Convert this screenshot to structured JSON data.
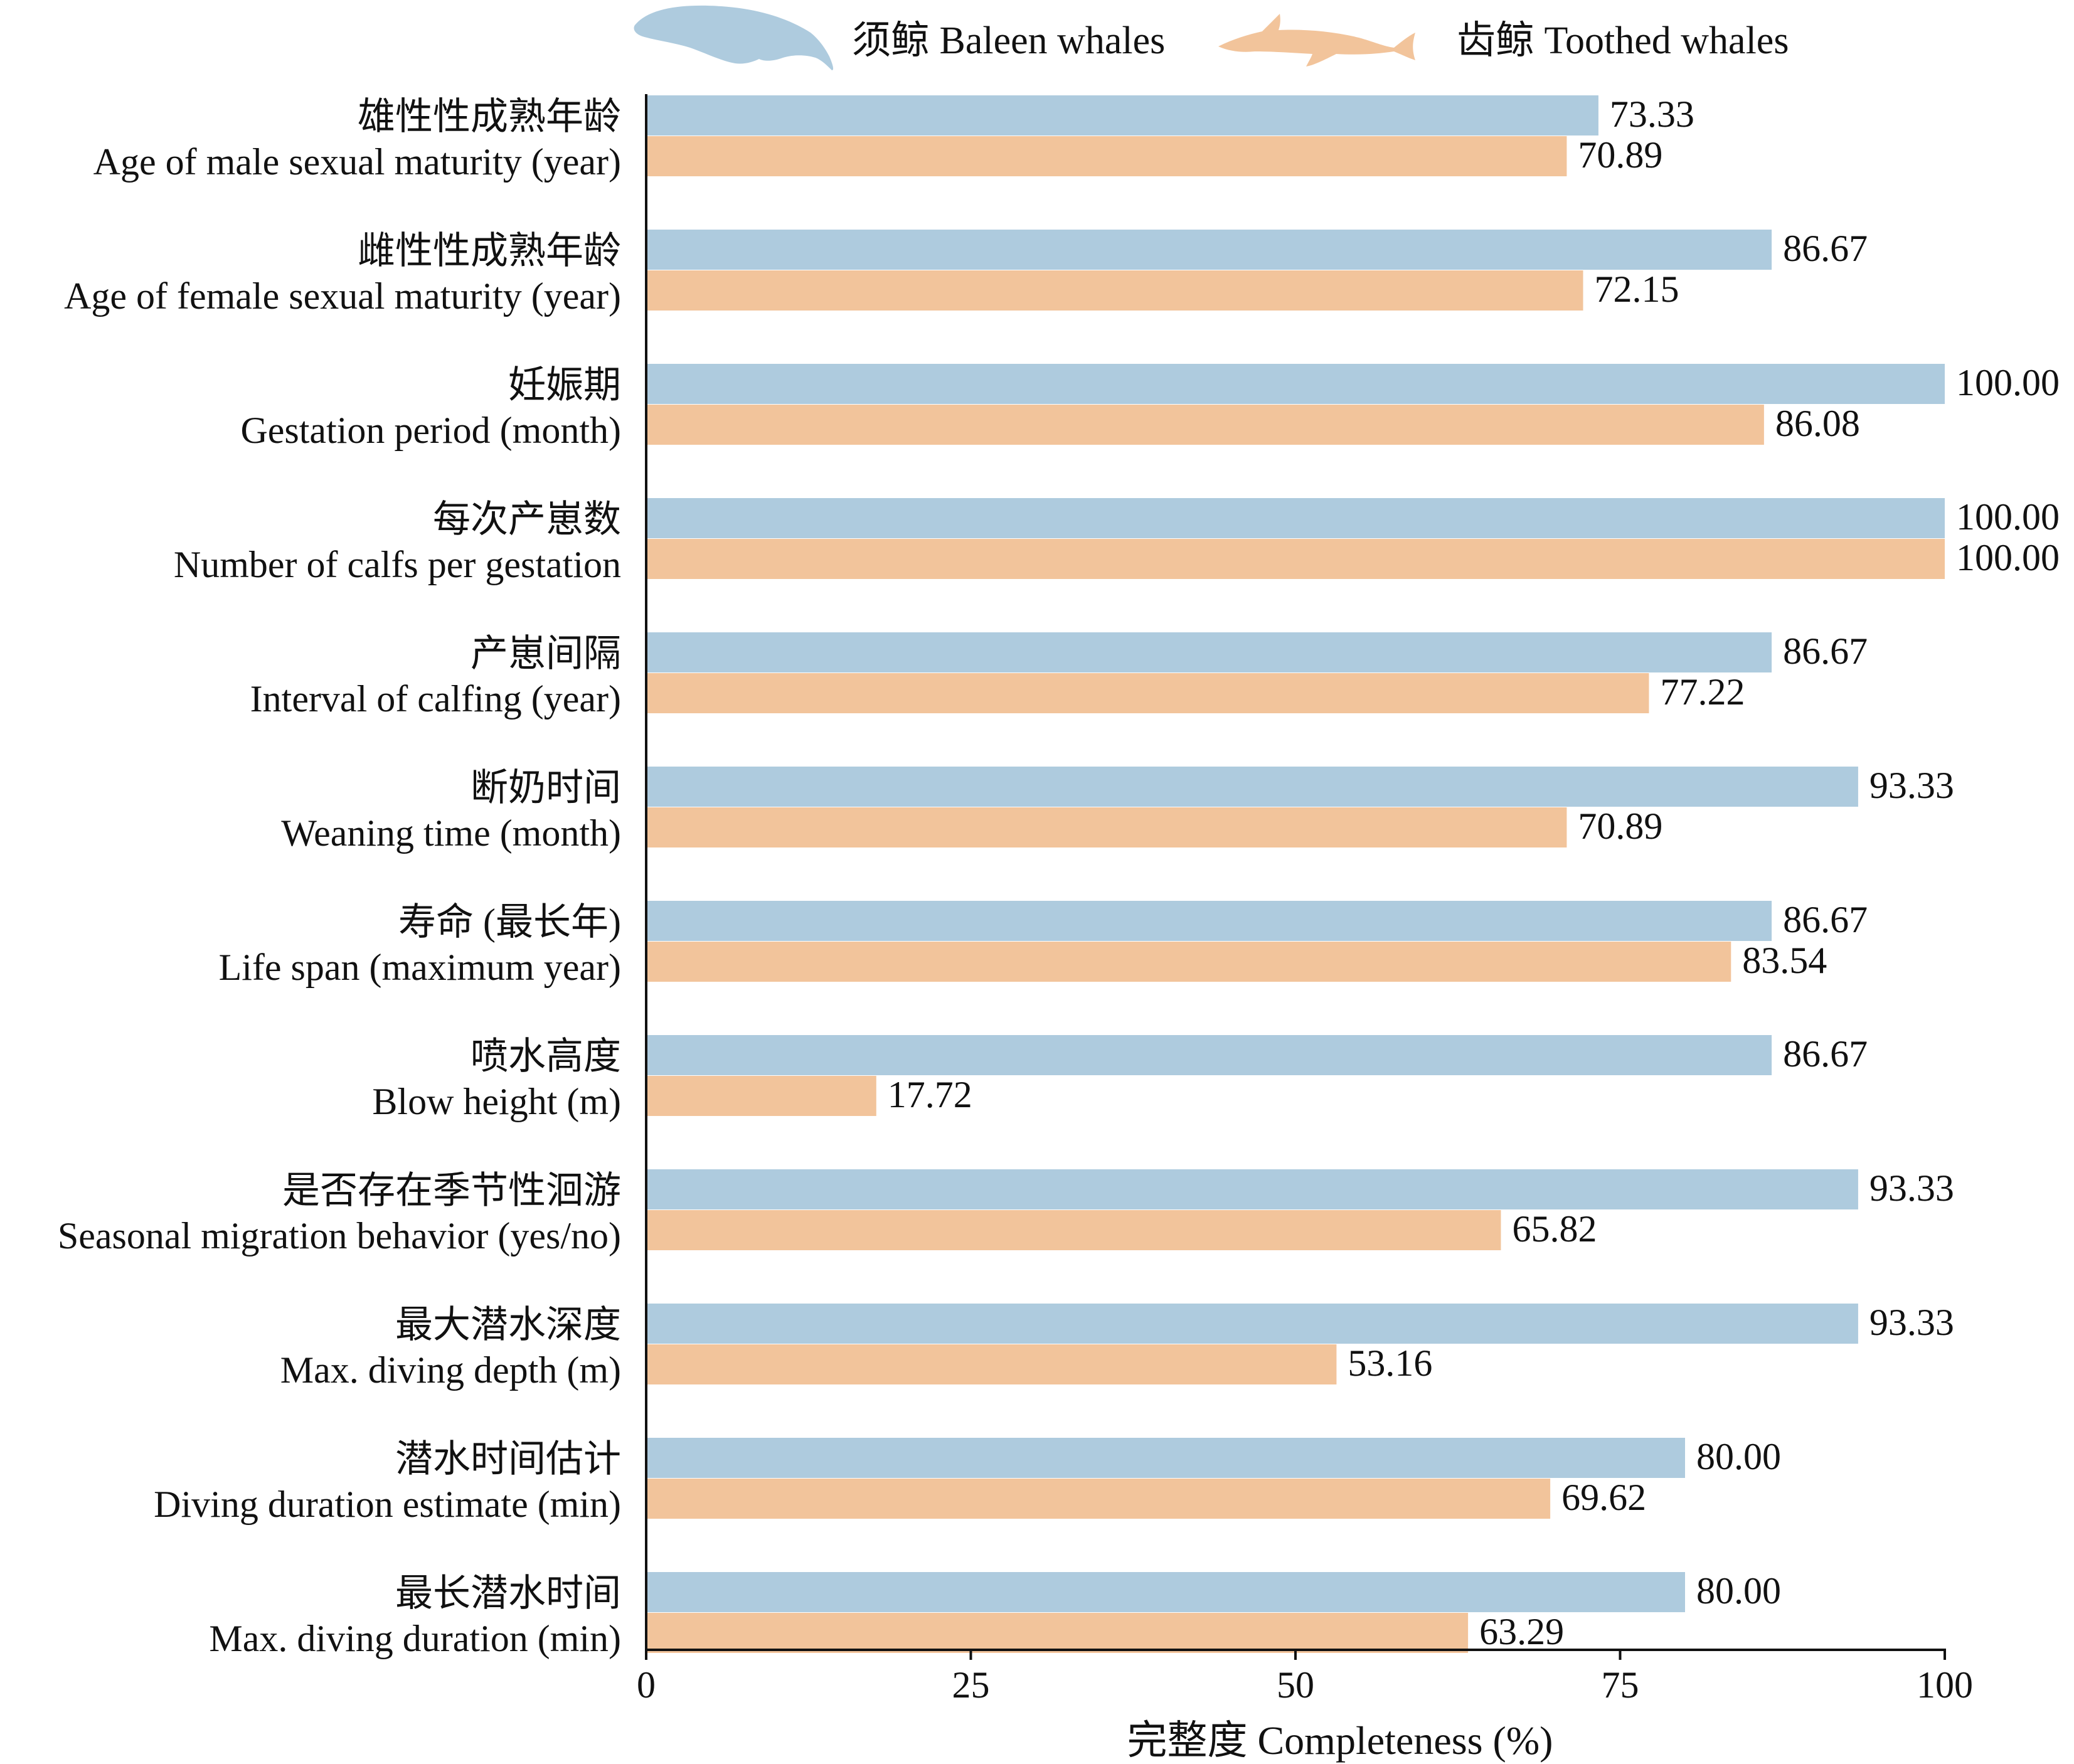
{
  "chart_data": {
    "type": "bar",
    "orientation": "horizontal",
    "categories": [
      {
        "zh": "雄性性成熟年龄",
        "en": "Age of male sexual maturity (year)"
      },
      {
        "zh": "雌性性成熟年龄",
        "en": "Age of female sexual maturity (year)"
      },
      {
        "zh": "妊娠期",
        "en": "Gestation period (month)"
      },
      {
        "zh": "每次产崽数",
        "en": "Number of calfs per gestation"
      },
      {
        "zh": "产崽间隔",
        "en": "Interval of calfing (year)"
      },
      {
        "zh": "断奶时间",
        "en": "Weaning time (month)"
      },
      {
        "zh": "寿命 (最长年)",
        "en": "Life span (maximum year)"
      },
      {
        "zh": "喷水高度",
        "en": "Blow height (m)"
      },
      {
        "zh": "是否存在季节性洄游",
        "en": "Seasonal migration behavior (yes/no)"
      },
      {
        "zh": "最大潜水深度",
        "en": "Max. diving depth (m)"
      },
      {
        "zh": "潜水时间估计",
        "en": "Diving duration estimate (min)"
      },
      {
        "zh": "最长潜水时间",
        "en": "Max. diving duration (min)"
      }
    ],
    "series": [
      {
        "name": "须鲸 Baleen whales",
        "color": "#aecbde",
        "icon": "baleen-whale-silhouette",
        "values": [
          73.33,
          86.67,
          100.0,
          100.0,
          86.67,
          93.33,
          86.67,
          86.67,
          93.33,
          93.33,
          80.0,
          80.0
        ],
        "labels": [
          "73.33",
          "86.67",
          "100.00",
          "100.00",
          "86.67",
          "93.33",
          "86.67",
          "86.67",
          "93.33",
          "93.33",
          "80.00",
          "80.00"
        ]
      },
      {
        "name": "齿鲸 Toothed whales",
        "color": "#f2c49b",
        "icon": "dolphin-silhouette",
        "values": [
          70.89,
          72.15,
          86.08,
          100.0,
          77.22,
          70.89,
          83.54,
          17.72,
          65.82,
          53.16,
          69.62,
          63.29
        ],
        "labels": [
          "70.89",
          "72.15",
          "86.08",
          "100.00",
          "77.22",
          "70.89",
          "83.54",
          "17.72",
          "65.82",
          "53.16",
          "69.62",
          "63.29"
        ]
      }
    ],
    "xlabel": "完整度 Completeness (%)",
    "xlim": [
      0,
      100
    ],
    "xticks": [
      0,
      25,
      50,
      75,
      100
    ],
    "xtick_labels": [
      "0",
      "25",
      "50",
      "75",
      "100"
    ],
    "grid": false,
    "legend_position": "top"
  }
}
